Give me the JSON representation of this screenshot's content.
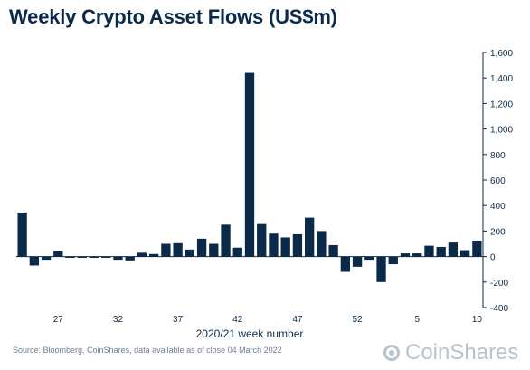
{
  "chart_data": {
    "type": "bar",
    "title": "Weekly Crypto Asset Flows (US$m)",
    "xlabel": "2020/21 week number",
    "ylabel": "",
    "ylim": [
      -400,
      1600
    ],
    "yticks": [
      "1,600",
      "1,400",
      "1,200",
      "1,000",
      "800",
      "600",
      "400",
      "200",
      "0",
      "-200",
      "-400"
    ],
    "ytick_values": [
      1600,
      1400,
      1200,
      1000,
      800,
      600,
      400,
      200,
      0,
      -200,
      -400
    ],
    "xtick_labels": [
      {
        "label": "27",
        "index": 3
      },
      {
        "label": "32",
        "index": 8
      },
      {
        "label": "37",
        "index": 13
      },
      {
        "label": "42",
        "index": 18
      },
      {
        "label": "47",
        "index": 23
      },
      {
        "label": "52",
        "index": 28
      },
      {
        "label": "5",
        "index": 33
      },
      {
        "label": "10",
        "index": 38
      }
    ],
    "bar_color": "#0b2a4a",
    "y_axis_position": "right",
    "grid": false,
    "values": [
      345,
      -70,
      -25,
      45,
      -10,
      -10,
      -10,
      -10,
      -25,
      -30,
      30,
      20,
      100,
      105,
      55,
      140,
      100,
      250,
      70,
      1440,
      255,
      180,
      150,
      175,
      305,
      200,
      90,
      -120,
      -80,
      -25,
      -200,
      -60,
      25,
      25,
      85,
      75,
      110,
      50,
      125
    ]
  },
  "footer": {
    "source": "Source: Bloomberg, CoinShares, data available as of close 04 March 2022",
    "brand": "CoinShares"
  }
}
